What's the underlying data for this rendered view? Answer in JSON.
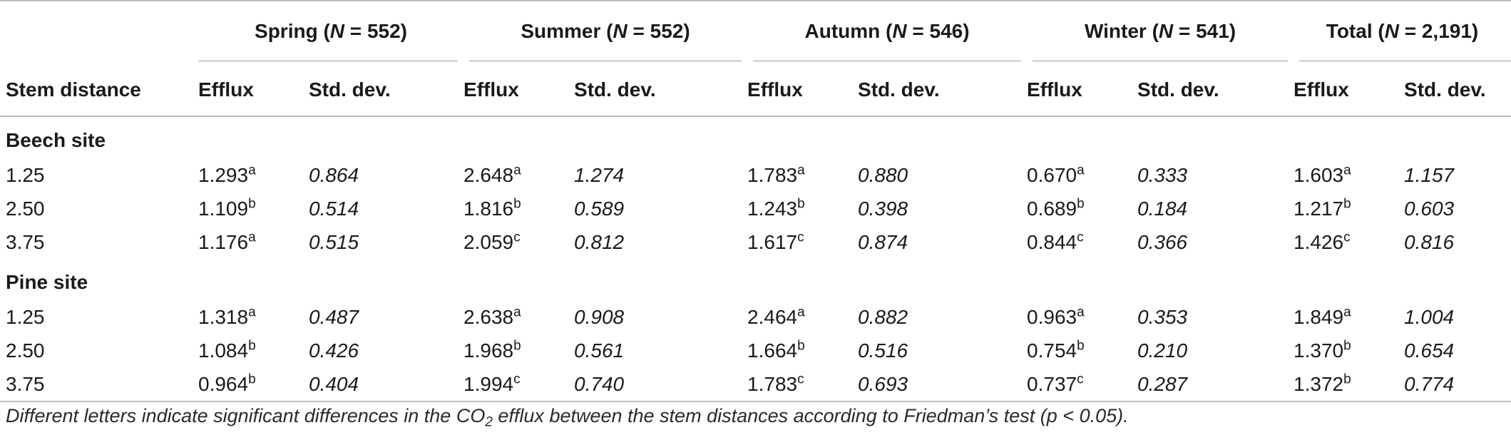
{
  "table": {
    "stem_header": "Stem distance",
    "groups": [
      {
        "label_pre": "Spring (",
        "n_italic": "N",
        "label_post": " = 552)"
      },
      {
        "label_pre": "Summer (",
        "n_italic": "N",
        "label_post": " = 552)"
      },
      {
        "label_pre": "Autumn (",
        "n_italic": "N",
        "label_post": " = 546)"
      },
      {
        "label_pre": "Winter (",
        "n_italic": "N",
        "label_post": " = 541)"
      },
      {
        "label_pre": "Total (",
        "n_italic": "N",
        "label_post": " = 2,191)"
      }
    ],
    "sub_headers": {
      "efflux": "Efflux",
      "std": "Std. dev."
    },
    "sections": [
      {
        "name": "Beech site",
        "rows": [
          {
            "dist": "1.25",
            "cells": [
              {
                "efflux": "1.293",
                "sup": "a",
                "std": "0.864"
              },
              {
                "efflux": "2.648",
                "sup": "a",
                "std": "1.274"
              },
              {
                "efflux": "1.783",
                "sup": "a",
                "std": "0.880"
              },
              {
                "efflux": "0.670",
                "sup": "a",
                "std": "0.333"
              },
              {
                "efflux": "1.603",
                "sup": "a",
                "std": "1.157"
              }
            ]
          },
          {
            "dist": "2.50",
            "cells": [
              {
                "efflux": "1.109",
                "sup": "b",
                "std": "0.514"
              },
              {
                "efflux": "1.816",
                "sup": "b",
                "std": "0.589"
              },
              {
                "efflux": "1.243",
                "sup": "b",
                "std": "0.398"
              },
              {
                "efflux": "0.689",
                "sup": "b",
                "std": "0.184"
              },
              {
                "efflux": "1.217",
                "sup": "b",
                "std": "0.603"
              }
            ]
          },
          {
            "dist": "3.75",
            "cells": [
              {
                "efflux": "1.176",
                "sup": "a",
                "std": "0.515"
              },
              {
                "efflux": "2.059",
                "sup": "c",
                "std": "0.812"
              },
              {
                "efflux": "1.617",
                "sup": "c",
                "std": "0.874"
              },
              {
                "efflux": "0.844",
                "sup": "c",
                "std": "0.366"
              },
              {
                "efflux": "1.426",
                "sup": "c",
                "std": "0.816"
              }
            ]
          }
        ]
      },
      {
        "name": "Pine site",
        "rows": [
          {
            "dist": "1.25",
            "cells": [
              {
                "efflux": "1.318",
                "sup": "a",
                "std": "0.487"
              },
              {
                "efflux": "2.638",
                "sup": "a",
                "std": "0.908"
              },
              {
                "efflux": "2.464",
                "sup": "a",
                "std": "0.882"
              },
              {
                "efflux": "0.963",
                "sup": "a",
                "std": "0.353"
              },
              {
                "efflux": "1.849",
                "sup": "a",
                "std": "1.004"
              }
            ]
          },
          {
            "dist": "2.50",
            "cells": [
              {
                "efflux": "1.084",
                "sup": "b",
                "std": "0.426"
              },
              {
                "efflux": "1.968",
                "sup": "b",
                "std": "0.561"
              },
              {
                "efflux": "1.664",
                "sup": "b",
                "std": "0.516"
              },
              {
                "efflux": "0.754",
                "sup": "b",
                "std": "0.210"
              },
              {
                "efflux": "1.370",
                "sup": "b",
                "std": "0.654"
              }
            ]
          },
          {
            "dist": "3.75",
            "cells": [
              {
                "efflux": "0.964",
                "sup": "b",
                "std": "0.404"
              },
              {
                "efflux": "1.994",
                "sup": "c",
                "std": "0.740"
              },
              {
                "efflux": "1.783",
                "sup": "c",
                "std": "0.693"
              },
              {
                "efflux": "0.737",
                "sup": "c",
                "std": "0.287"
              },
              {
                "efflux": "1.372",
                "sup": "b",
                "std": "0.774"
              }
            ]
          }
        ]
      }
    ]
  },
  "footnote": {
    "pre": "Different letters indicate significant differences in the CO",
    "sub": "2",
    "post": " efflux between the stem distances according to Friedman’s test (p < 0.05)."
  }
}
